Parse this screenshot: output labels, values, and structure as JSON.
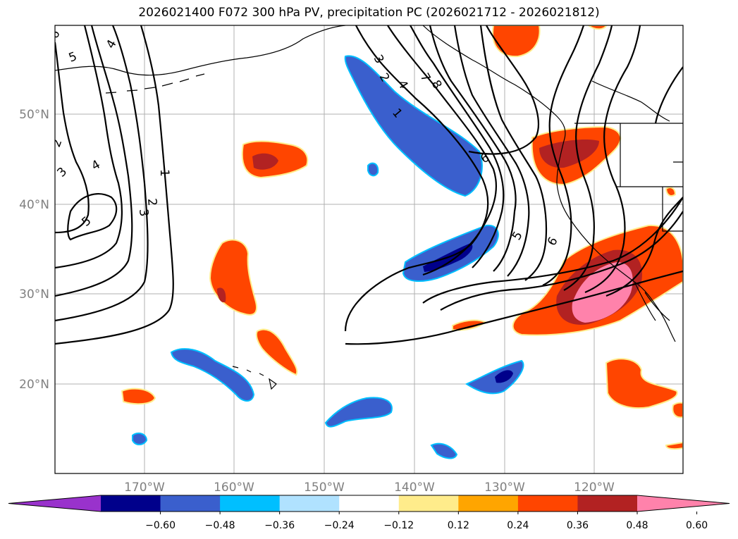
{
  "title": "2026021400 F072 300 hPa PV, precipitation PC (2026021712 - 2026021812)",
  "map": {
    "lat_ticks": [
      "50°N",
      "40°N",
      "30°N",
      "20°N"
    ],
    "lon_ticks": [
      "170°W",
      "160°W",
      "150°W",
      "140°W",
      "130°W",
      "120°W"
    ],
    "contour_labels": [
      "6",
      "5",
      "4",
      "2",
      "3",
      "4",
      "3",
      "2",
      "1",
      "5",
      "1",
      "2",
      "3",
      "4",
      "7",
      "8",
      "6",
      "5",
      "6"
    ]
  },
  "colorbar": {
    "labels": [
      "−0.60",
      "−0.48",
      "−0.36",
      "−0.24",
      "−0.12",
      "0.12",
      "0.24",
      "0.36",
      "0.48",
      "0.60"
    ],
    "colors": [
      "#9932cc",
      "#00008b",
      "#3a5fcd",
      "#00bfff",
      "#b0e2ff",
      "#ffffff",
      "#ffec8b",
      "#ffa500",
      "#ff4500",
      "#b22222",
      "#ff82ab"
    ]
  }
}
